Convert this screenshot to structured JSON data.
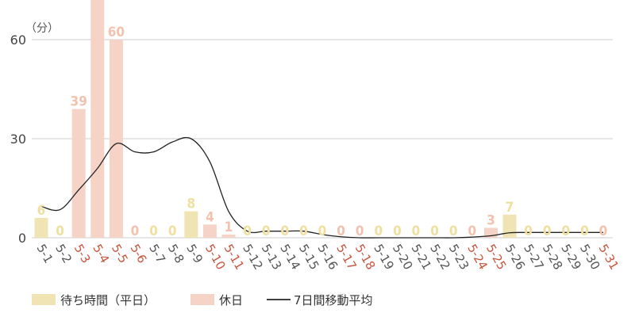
{
  "chart_data": {
    "type": "bar",
    "unit_label": "（分）",
    "ylim": [
      0,
      60
    ],
    "yticks": [
      0,
      30,
      60
    ],
    "grid": true,
    "legend_position": "bottom-left",
    "categories": [
      "5-1",
      "5-2",
      "5-3",
      "5-4",
      "5-5",
      "5-6",
      "5-7",
      "5-8",
      "5-9",
      "5-10",
      "5-11",
      "5-12",
      "5-13",
      "5-14",
      "5-15",
      "5-16",
      "5-17",
      "5-18",
      "5-19",
      "5-20",
      "5-21",
      "5-22",
      "5-23",
      "5-24",
      "5-25",
      "5-26",
      "5-27",
      "5-28",
      "5-29",
      "5-30",
      "5-31"
    ],
    "day_type": [
      "weekday",
      "weekday",
      "holiday",
      "holiday",
      "holiday",
      "holiday",
      "weekday",
      "weekday",
      "weekday",
      "holiday",
      "holiday",
      "weekday",
      "weekday",
      "weekday",
      "weekday",
      "weekday",
      "holiday",
      "holiday",
      "weekday",
      "weekday",
      "weekday",
      "weekday",
      "weekday",
      "holiday",
      "holiday",
      "weekday",
      "weekday",
      "weekday",
      "weekday",
      "weekday",
      "holiday"
    ],
    "values": [
      6,
      0,
      39,
      75,
      60,
      0,
      0,
      0,
      8,
      4,
      1,
      0,
      0,
      0,
      0,
      0,
      0,
      0,
      0,
      0,
      0,
      0,
      0,
      0,
      3,
      7,
      0,
      0,
      0,
      0,
      0
    ],
    "value_labels": [
      "6",
      "0",
      "39",
      "",
      "60",
      "0",
      "0",
      "0",
      "8",
      "4",
      "1",
      "0",
      "0",
      "0",
      "0",
      "0",
      "0",
      "0",
      "0",
      "0",
      "0",
      "0",
      "0",
      "0",
      "3",
      "7",
      "0",
      "0",
      "0",
      "0",
      "0"
    ],
    "moving_average": [
      9.5,
      8.5,
      14.5,
      21,
      28.5,
      26,
      26,
      29,
      30,
      23,
      8,
      2,
      2,
      2,
      2,
      1,
      0.3,
      0,
      0,
      0,
      0,
      0,
      0,
      0.2,
      0.6,
      1.5,
      1.6,
      1.6,
      1.6,
      1.6,
      1.6
    ],
    "series": [
      {
        "name": "待ち時間（平日）",
        "color": "#f0e4b4"
      },
      {
        "name": "休日",
        "color": "#f5d3c6"
      },
      {
        "name": "7日間移動平均",
        "color": "#000000"
      }
    ],
    "colors": {
      "weekday_bar": "#f0e4b4",
      "holiday_bar": "#f5d3c6",
      "weekday_label": "#f0e0a0",
      "holiday_label": "#f2c2ae",
      "weekday_axis_label": "#555555",
      "holiday_axis_label": "#c8553d",
      "line": "#222222",
      "grid": "#cccccc"
    }
  }
}
